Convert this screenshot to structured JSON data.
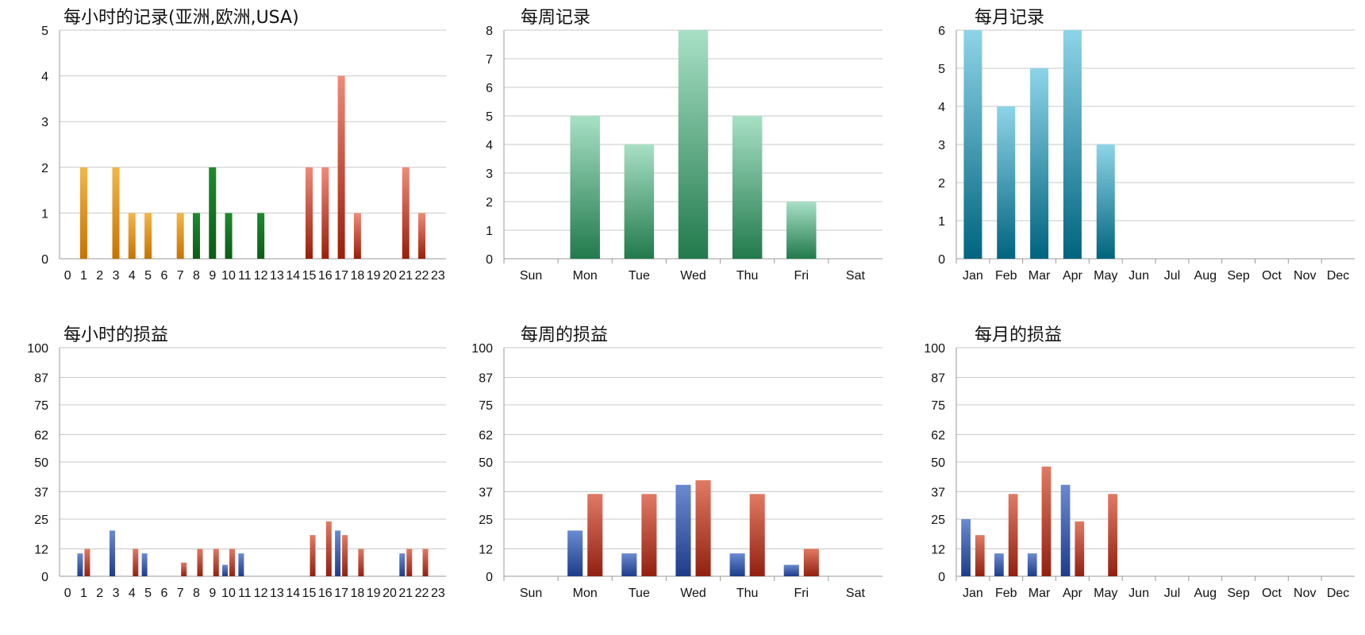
{
  "colors": {
    "grid": "#c8c8c8",
    "axis": "#9a9a9a",
    "orange": [
      "#f3b64a",
      "#c77300"
    ],
    "green": [
      "#1e8a2e",
      "#0c5c16"
    ],
    "red": [
      "#f08a78",
      "#9a1e0a"
    ],
    "teal_green": [
      "#a8e0c6",
      "#227a4c"
    ],
    "teal_blue": [
      "#8ed4e8",
      "#00647e"
    ],
    "blue": [
      "#6a8ad0",
      "#1e3c8a"
    ],
    "dark_red": [
      "#e07a64",
      "#922010"
    ]
  },
  "chart_data": [
    {
      "id": "hourly-records",
      "type": "bar",
      "title": "每小时的记录(亚洲,欧洲,USA)",
      "categories": [
        "0",
        "1",
        "2",
        "3",
        "4",
        "5",
        "6",
        "7",
        "8",
        "9",
        "10",
        "11",
        "12",
        "13",
        "14",
        "15",
        "16",
        "17",
        "18",
        "19",
        "20",
        "21",
        "22",
        "23"
      ],
      "series": [
        {
          "values": [
            0,
            2,
            0,
            2,
            1,
            1,
            0,
            1,
            0,
            0,
            0,
            0,
            0,
            0,
            0,
            0,
            0,
            0,
            0,
            0,
            0,
            0,
            0,
            0
          ],
          "color_key": "orange"
        },
        {
          "values": [
            0,
            0,
            0,
            0,
            0,
            0,
            0,
            0,
            1,
            2,
            1,
            0,
            1,
            0,
            0,
            0,
            0,
            0,
            0,
            0,
            0,
            0,
            0,
            0
          ],
          "color_key": "green"
        },
        {
          "values": [
            0,
            0,
            0,
            0,
            0,
            0,
            0,
            0,
            0,
            0,
            0,
            0,
            0,
            0,
            0,
            2,
            2,
            4,
            1,
            0,
            0,
            2,
            1,
            0
          ],
          "color_key": "red"
        }
      ],
      "yticks": [
        0,
        1,
        2,
        3,
        4,
        5
      ],
      "ylim": [
        0,
        5
      ],
      "grid": true
    },
    {
      "id": "weekly-records",
      "type": "bar",
      "title": "每周记录",
      "categories": [
        "Sun",
        "Mon",
        "Tue",
        "Wed",
        "Thu",
        "Fri",
        "Sat"
      ],
      "series": [
        {
          "values": [
            0,
            5,
            4,
            8,
            5,
            2,
            0
          ],
          "color_key": "teal_green"
        }
      ],
      "yticks": [
        0,
        1,
        2,
        3,
        4,
        5,
        6,
        7,
        8
      ],
      "ylim": [
        0,
        8
      ],
      "grid": true
    },
    {
      "id": "monthly-records",
      "type": "bar",
      "title": "每月记录",
      "categories": [
        "Jan",
        "Feb",
        "Mar",
        "Apr",
        "May",
        "Jun",
        "Jul",
        "Aug",
        "Sep",
        "Oct",
        "Nov",
        "Dec"
      ],
      "series": [
        {
          "values": [
            6,
            4,
            5,
            6,
            3,
            0,
            0,
            0,
            0,
            0,
            0,
            0
          ],
          "color_key": "teal_blue"
        }
      ],
      "yticks": [
        0,
        1,
        2,
        3,
        4,
        5,
        6
      ],
      "ylim": [
        0,
        6
      ],
      "grid": true
    },
    {
      "id": "hourly-pnl",
      "type": "bar",
      "title": "每小时的损益",
      "categories": [
        "0",
        "1",
        "2",
        "3",
        "4",
        "5",
        "6",
        "7",
        "8",
        "9",
        "10",
        "11",
        "12",
        "13",
        "14",
        "15",
        "16",
        "17",
        "18",
        "19",
        "20",
        "21",
        "22",
        "23"
      ],
      "series": [
        {
          "values": [
            0,
            10,
            0,
            20,
            0,
            10,
            0,
            0,
            0,
            0,
            5,
            10,
            0,
            0,
            0,
            0,
            0,
            20,
            0,
            0,
            0,
            10,
            0,
            0
          ],
          "color_key": "blue"
        },
        {
          "values": [
            0,
            12,
            0,
            0,
            12,
            0,
            0,
            6,
            12,
            12,
            12,
            0,
            0,
            0,
            0,
            18,
            24,
            18,
            12,
            0,
            0,
            12,
            12,
            0
          ],
          "color_key": "dark_red"
        }
      ],
      "yticks": [
        0,
        12,
        25,
        37,
        50,
        62,
        75,
        87,
        100
      ],
      "ylim": [
        0,
        100
      ],
      "grid": true
    },
    {
      "id": "weekly-pnl",
      "type": "bar",
      "title": "每周的损益",
      "categories": [
        "Sun",
        "Mon",
        "Tue",
        "Wed",
        "Thu",
        "Fri",
        "Sat"
      ],
      "series": [
        {
          "values": [
            0,
            20,
            10,
            40,
            10,
            5,
            0
          ],
          "color_key": "blue"
        },
        {
          "values": [
            0,
            36,
            36,
            42,
            36,
            12,
            0
          ],
          "color_key": "dark_red"
        }
      ],
      "yticks": [
        0,
        12,
        25,
        37,
        50,
        62,
        75,
        87,
        100
      ],
      "ylim": [
        0,
        100
      ],
      "grid": true
    },
    {
      "id": "monthly-pnl",
      "type": "bar",
      "title": "每月的损益",
      "categories": [
        "Jan",
        "Feb",
        "Mar",
        "Apr",
        "May",
        "Jun",
        "Jul",
        "Aug",
        "Sep",
        "Oct",
        "Nov",
        "Dec"
      ],
      "series": [
        {
          "values": [
            25,
            10,
            10,
            40,
            0,
            0,
            0,
            0,
            0,
            0,
            0,
            0
          ],
          "color_key": "blue"
        },
        {
          "values": [
            18,
            36,
            48,
            24,
            36,
            0,
            0,
            0,
            0,
            0,
            0,
            0
          ],
          "color_key": "dark_red"
        }
      ],
      "yticks": [
        0,
        12,
        25,
        37,
        50,
        62,
        75,
        87,
        100
      ],
      "ylim": [
        0,
        100
      ],
      "grid": true
    }
  ]
}
